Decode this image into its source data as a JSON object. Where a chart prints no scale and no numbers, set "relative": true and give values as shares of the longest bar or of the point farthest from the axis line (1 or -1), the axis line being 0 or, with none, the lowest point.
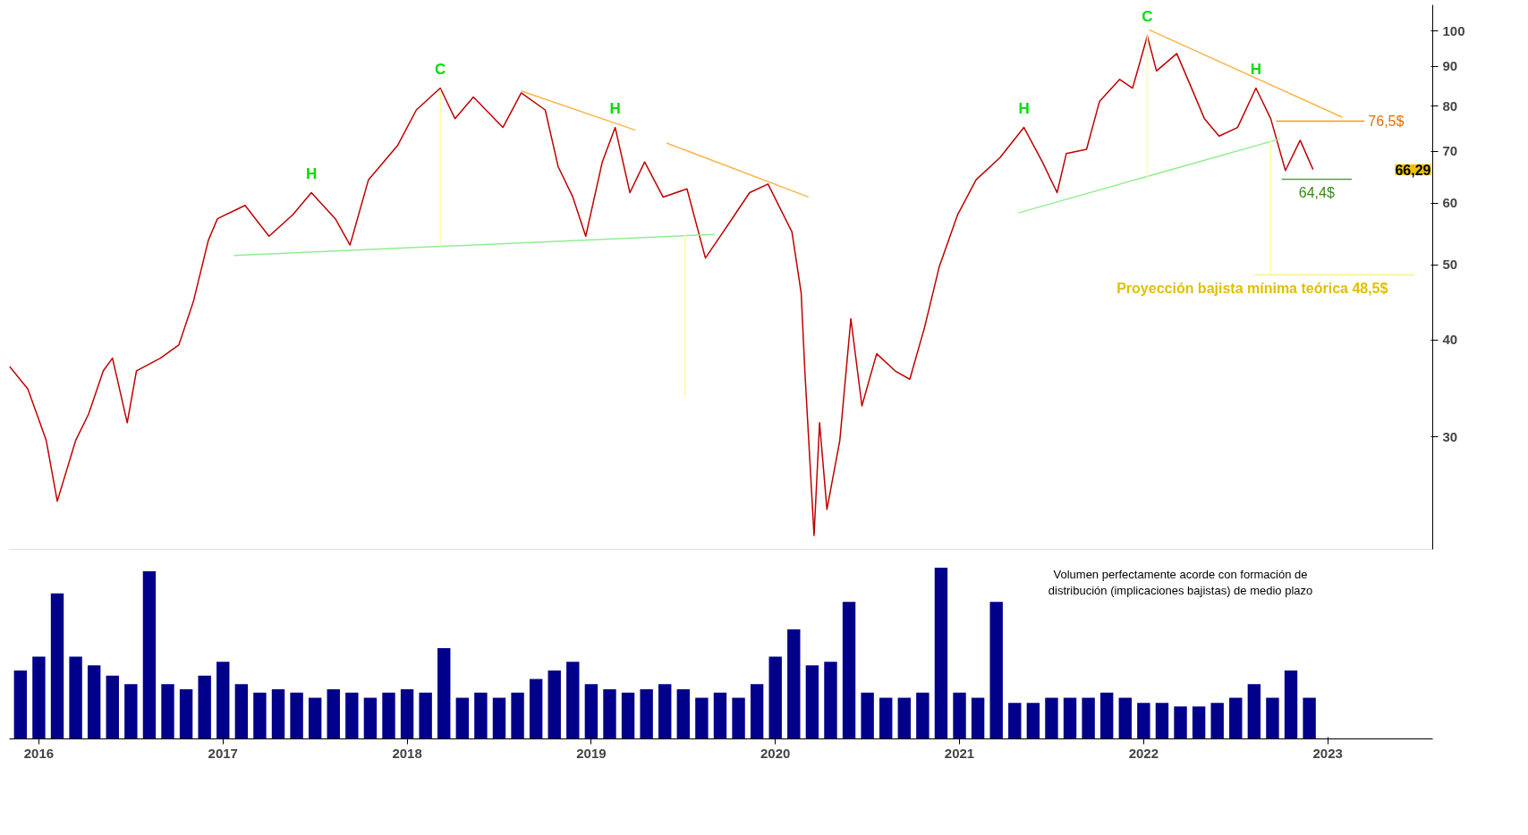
{
  "chart_data": [
    {
      "type": "line",
      "log": "y",
      "grid": false,
      "tick_labels": "y",
      "xlim": [
        2015.84,
        2023.57
      ],
      "ylim": [
        21.5,
        108
      ],
      "yticks": [
        30,
        40,
        50,
        60,
        70,
        80,
        90,
        100
      ],
      "series": [
        {
          "color": "#c00000",
          "x": [
            2015.84,
            2015.94,
            2016.04,
            2016.1,
            2016.2,
            2016.27,
            2016.35,
            2016.4,
            2016.48,
            2016.53,
            2016.66,
            2016.76,
            2016.84,
            2016.92,
            2016.97,
            2017.12,
            2017.25,
            2017.38,
            2017.48,
            2017.61,
            2017.69,
            2017.79,
            2017.95,
            2018.05,
            2018.18,
            2018.26,
            2018.36,
            2018.52,
            2018.62,
            2018.75,
            2018.82,
            2018.9,
            2018.97,
            2019.06,
            2019.13,
            2019.21,
            2019.29,
            2019.39,
            2019.52,
            2019.62,
            2019.75,
            2019.86,
            2019.96,
            2020.09,
            2020.14,
            2020.16,
            2020.21,
            2020.24,
            2020.28,
            2020.35,
            2020.41,
            2020.47,
            2020.55,
            2020.65,
            2020.73,
            2020.81,
            2020.89,
            2020.99,
            2021.09,
            2021.22,
            2021.35,
            2021.45,
            2021.53,
            2021.58,
            2021.69,
            2021.76,
            2021.87,
            2021.94,
            2022.02,
            2022.07,
            2022.18,
            2022.25,
            2022.33,
            2022.41,
            2022.51,
            2022.61,
            2022.69,
            2022.77,
            2022.85,
            2022.92
          ],
          "values": [
            37,
            34.6,
            29.7,
            24.8,
            29.7,
            32.1,
            36.5,
            37.9,
            31.3,
            36.5,
            37.9,
            39.4,
            44.9,
            53.7,
            57.3,
            59.6,
            54.4,
            58,
            61.9,
            57.3,
            53,
            64.3,
            71.3,
            79.1,
            84.4,
            77.1,
            82.2,
            75.1,
            83.2,
            79.1,
            66.9,
            61.1,
            54.4,
            67.8,
            75.1,
            61.9,
            67.8,
            61.1,
            62.6,
            51,
            56.6,
            61.9,
            63.5,
            55.1,
            46,
            36.5,
            22.4,
            31.3,
            24.2,
            29.7,
            42.6,
            32.9,
            38.4,
            36.5,
            35.6,
            41.5,
            49.7,
            58,
            64.3,
            68.7,
            75.1,
            67.8,
            61.9,
            69.5,
            70.4,
            81.1,
            86.6,
            84.4,
            98.5,
            88.8,
            93.5,
            85.5,
            77.1,
            73.2,
            75.1,
            84.4,
            77.1,
            66.1,
            72.3,
            66.29
          ]
        },
        {
          "color": "#90ee90",
          "x": [
            2017.06,
            2019.67
          ],
          "values": [
            51.4,
            54.7
          ]
        },
        {
          "color": "#90ee90",
          "x": [
            2021.32,
            2022.74
          ],
          "values": [
            58.3,
            72.6
          ]
        },
        {
          "color": "#ffb347",
          "x": [
            2018.62,
            2019.24
          ],
          "values": [
            83.7,
            74.5
          ]
        },
        {
          "color": "#ffb347",
          "x": [
            2019.41,
            2020.18
          ],
          "values": [
            71.7,
            61.1
          ]
        },
        {
          "color": "#ffb347",
          "x": [
            2022.03,
            2023.08
          ],
          "values": [
            100.3,
            77.4
          ]
        },
        {
          "color": "#ffff99",
          "x": [
            2018.18,
            2018.18
          ],
          "values": [
            84,
            52.8
          ]
        },
        {
          "color": "#ffff99",
          "x": [
            2019.51,
            2019.51
          ],
          "values": [
            54.6,
            33.8
          ]
        },
        {
          "color": "#ffff99",
          "x": [
            2022.02,
            2022.02
          ],
          "values": [
            98.5,
            64.8
          ]
        },
        {
          "color": "#ffff99",
          "x": [
            2022.69,
            2022.69
          ],
          "values": [
            72.3,
            48.5
          ]
        },
        {
          "color": "#ff9900",
          "x": [
            2022.72,
            2023.2
          ],
          "values": [
            76.5,
            76.5
          ]
        },
        {
          "color": "#5a9e2a",
          "x": [
            2022.75,
            2023.13
          ],
          "values": [
            64.4,
            64.4
          ]
        },
        {
          "color": "#ffee88",
          "x": [
            2022.6,
            2023.47
          ],
          "values": [
            48.5,
            48.5
          ]
        }
      ],
      "annotations": [
        {
          "text": "H",
          "x": 2017.48,
          "y": 61.9
        },
        {
          "text": "C",
          "x": 2018.18,
          "y": 84.4
        },
        {
          "text": "H",
          "x": 2019.13,
          "y": 75.1
        },
        {
          "text": "H",
          "x": 2021.35,
          "y": 75.1
        },
        {
          "text": "C",
          "x": 2022.02,
          "y": 98.5
        },
        {
          "text": "H",
          "x": 2022.61,
          "y": 84.4
        },
        {
          "text": "76,5$",
          "x": 2023.2,
          "y": 76.5
        },
        {
          "text": "64,4$",
          "x": 2022.94,
          "y": 64.4
        },
        {
          "text": "Proyección bajista mínima teórica 48,5$",
          "x": 2022.59,
          "y": 48.5
        },
        "66,29"
      ]
    },
    {
      "type": "bar",
      "relative": true,
      "tick_labels": "x",
      "grid": false,
      "color": "#00008b",
      "xlim": [
        2015.84,
        2023.57
      ],
      "xticks": [
        2016,
        2017,
        2018,
        2019,
        2020,
        2021,
        2022,
        2023
      ],
      "x": [
        2015.9,
        2016.0,
        2016.1,
        2016.2,
        2016.3,
        2016.4,
        2016.5,
        2016.6,
        2016.7,
        2016.8,
        2016.9,
        2017.0,
        2017.1,
        2017.2,
        2017.3,
        2017.4,
        2017.5,
        2017.6,
        2017.7,
        2017.8,
        2017.9,
        2018.0,
        2018.1,
        2018.2,
        2018.3,
        2018.4,
        2018.5,
        2018.6,
        2018.7,
        2018.8,
        2018.9,
        2019.0,
        2019.1,
        2019.2,
        2019.3,
        2019.4,
        2019.5,
        2019.6,
        2019.7,
        2019.8,
        2019.9,
        2020.0,
        2020.1,
        2020.2,
        2020.3,
        2020.4,
        2020.5,
        2020.6,
        2020.7,
        2020.8,
        2020.9,
        2021.0,
        2021.1,
        2021.2,
        2021.3,
        2021.4,
        2021.5,
        2021.6,
        2021.7,
        2021.8,
        2021.9,
        2022.0,
        2022.1,
        2022.2,
        2022.3,
        2022.4,
        2022.5,
        2022.6,
        2022.7,
        2022.8,
        2022.9
      ],
      "values": [
        0.4,
        0.48,
        0.85,
        0.48,
        0.43,
        0.37,
        0.32,
        0.98,
        0.32,
        0.29,
        0.37,
        0.45,
        0.32,
        0.27,
        0.29,
        0.27,
        0.24,
        0.29,
        0.27,
        0.24,
        0.27,
        0.29,
        0.27,
        0.53,
        0.24,
        0.27,
        0.24,
        0.27,
        0.35,
        0.4,
        0.45,
        0.32,
        0.29,
        0.27,
        0.29,
        0.32,
        0.29,
        0.24,
        0.27,
        0.24,
        0.32,
        0.48,
        0.64,
        0.43,
        0.45,
        0.8,
        0.27,
        0.24,
        0.24,
        0.27,
        1,
        0.27,
        0.24,
        0.8,
        0.21,
        0.21,
        0.24,
        0.24,
        0.24,
        0.27,
        0.24,
        0.21,
        0.21,
        0.19,
        0.19,
        0.21,
        0.24,
        0.32,
        0.24,
        0.4,
        0.24
      ],
      "annotations": [
        "Volumen perfectamente acorde con formación de distribución (implicaciones bajistas) de medio plazo"
      ]
    }
  ]
}
